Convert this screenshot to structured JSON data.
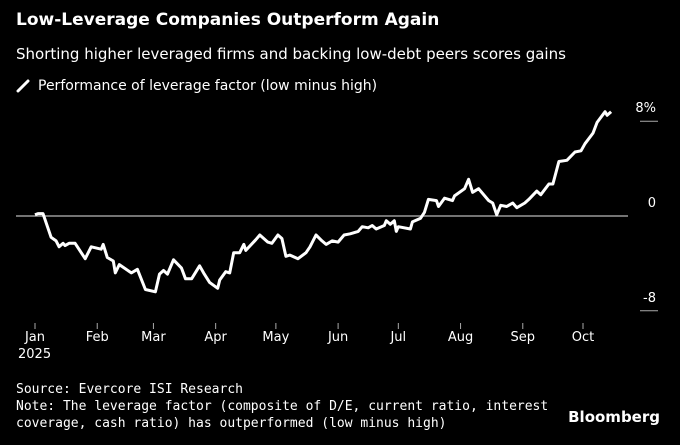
{
  "title": "Low-Leverage Companies Outperform Again",
  "subtitle": "Shorting higher leveraged firms and backing low-debt peers scores gains",
  "source": "Source: Evercore ISI Research",
  "note_lines": [
    "Note: The leverage factor (composite of D/E, current ratio, interest",
    "coverage, cash ratio) has outperformed (low minus high)"
  ],
  "brand": "Bloomberg",
  "chart_data": {
    "type": "line",
    "title": "Low-Leverage Companies Outperform Again",
    "legend": [
      {
        "name": "Performance of leverage factor (low minus high)",
        "color": "#ffffff",
        "placement": "top-left"
      }
    ],
    "xlabel": "",
    "ylabel": "%",
    "ylim": [
      -8,
      8
    ],
    "yticks": [
      {
        "value": 8,
        "label": "8%"
      },
      {
        "value": 0,
        "label": "0"
      },
      {
        "value": -8,
        "label": "-8"
      }
    ],
    "xticks": [
      {
        "day": 0,
        "label": "Jan",
        "sub": "2025"
      },
      {
        "day": 31,
        "label": "Feb"
      },
      {
        "day": 59,
        "label": "Mar"
      },
      {
        "day": 90,
        "label": "Apr"
      },
      {
        "day": 120,
        "label": "May"
      },
      {
        "day": 151,
        "label": "Jun"
      },
      {
        "day": 181,
        "label": "Jul"
      },
      {
        "day": 212,
        "label": "Aug"
      },
      {
        "day": 243,
        "label": "Sep"
      },
      {
        "day": 273,
        "label": "Oct"
      }
    ],
    "x_unit": "days since 2025-01-01",
    "series": [
      {
        "name": "Performance of leverage factor (low minus high)",
        "points": [
          [
            0,
            0.1
          ],
          [
            1.5,
            0.2
          ],
          [
            4,
            0.2
          ],
          [
            8,
            -1.8
          ],
          [
            10.5,
            -2.1
          ],
          [
            12,
            -2.6
          ],
          [
            14,
            -2.3
          ],
          [
            15,
            -2.5
          ],
          [
            17,
            -2.3
          ],
          [
            20,
            -2.3
          ],
          [
            25,
            -3.6
          ],
          [
            28,
            -2.6
          ],
          [
            33,
            -2.8
          ],
          [
            34,
            -2.4
          ],
          [
            36,
            -3.5
          ],
          [
            39,
            -3.8
          ],
          [
            40,
            -4.8
          ],
          [
            42,
            -4.1
          ],
          [
            48,
            -4.8
          ],
          [
            51,
            -4.5
          ],
          [
            55,
            -6.2
          ],
          [
            60,
            -6.4
          ],
          [
            62,
            -4.9
          ],
          [
            64,
            -4.6
          ],
          [
            66,
            -4.9
          ],
          [
            69,
            -3.7
          ],
          [
            73,
            -4.4
          ],
          [
            75,
            -5.3
          ],
          [
            78,
            -5.3
          ],
          [
            82,
            -4.2
          ],
          [
            84,
            -4.8
          ],
          [
            87,
            -5.6
          ],
          [
            91,
            -6.1
          ],
          [
            92,
            -5.4
          ],
          [
            95,
            -4.7
          ],
          [
            97,
            -4.8
          ],
          [
            99,
            -3.1
          ],
          [
            102,
            -3.1
          ],
          [
            104,
            -2.4
          ],
          [
            105,
            -2.9
          ],
          [
            110,
            -2.0
          ],
          [
            112,
            -1.6
          ],
          [
            116,
            -2.2
          ],
          [
            118,
            -2.3
          ],
          [
            121,
            -1.6
          ],
          [
            123,
            -1.9
          ],
          [
            125,
            -3.4
          ],
          [
            127,
            -3.3
          ],
          [
            131,
            -3.6
          ],
          [
            135,
            -3.1
          ],
          [
            137,
            -2.6
          ],
          [
            140,
            -1.6
          ],
          [
            143,
            -2.1
          ],
          [
            145,
            -2.4
          ],
          [
            148,
            -2.1
          ],
          [
            151,
            -2.2
          ],
          [
            154,
            -1.6
          ],
          [
            157,
            -1.5
          ],
          [
            161,
            -1.3
          ],
          [
            163,
            -0.9
          ],
          [
            166,
            -1.0
          ],
          [
            168,
            -0.8
          ],
          [
            170,
            -1.1
          ],
          [
            174,
            -0.8
          ],
          [
            175,
            -0.4
          ],
          [
            177,
            -0.7
          ],
          [
            179,
            -0.4
          ],
          [
            180,
            -1.3
          ],
          [
            181,
            -0.9
          ],
          [
            187,
            -1.1
          ],
          [
            188,
            -0.5
          ],
          [
            192,
            -0.2
          ],
          [
            194,
            0.3
          ],
          [
            196,
            1.4
          ],
          [
            200,
            1.3
          ],
          [
            201,
            0.8
          ],
          [
            204,
            1.5
          ],
          [
            208,
            1.3
          ],
          [
            209,
            1.7
          ],
          [
            214,
            2.3
          ],
          [
            216,
            3.1
          ],
          [
            218,
            2.0
          ],
          [
            221,
            2.3
          ],
          [
            226,
            1.3
          ],
          [
            228,
            1.1
          ],
          [
            230,
            0.1
          ],
          [
            232,
            0.9
          ],
          [
            235,
            0.8
          ],
          [
            238,
            1.1
          ],
          [
            240,
            0.7
          ],
          [
            244,
            1.1
          ],
          [
            246,
            1.4
          ],
          [
            250,
            2.1
          ],
          [
            252,
            1.8
          ],
          [
            256,
            2.7
          ],
          [
            258,
            2.7
          ],
          [
            261,
            4.6
          ],
          [
            265,
            4.7
          ],
          [
            269,
            5.4
          ],
          [
            272,
            5.5
          ],
          [
            274,
            6.1
          ],
          [
            278,
            7.0
          ],
          [
            280,
            7.9
          ],
          [
            284,
            8.8
          ],
          [
            285,
            8.5
          ],
          [
            287,
            8.8
          ]
        ]
      }
    ]
  }
}
